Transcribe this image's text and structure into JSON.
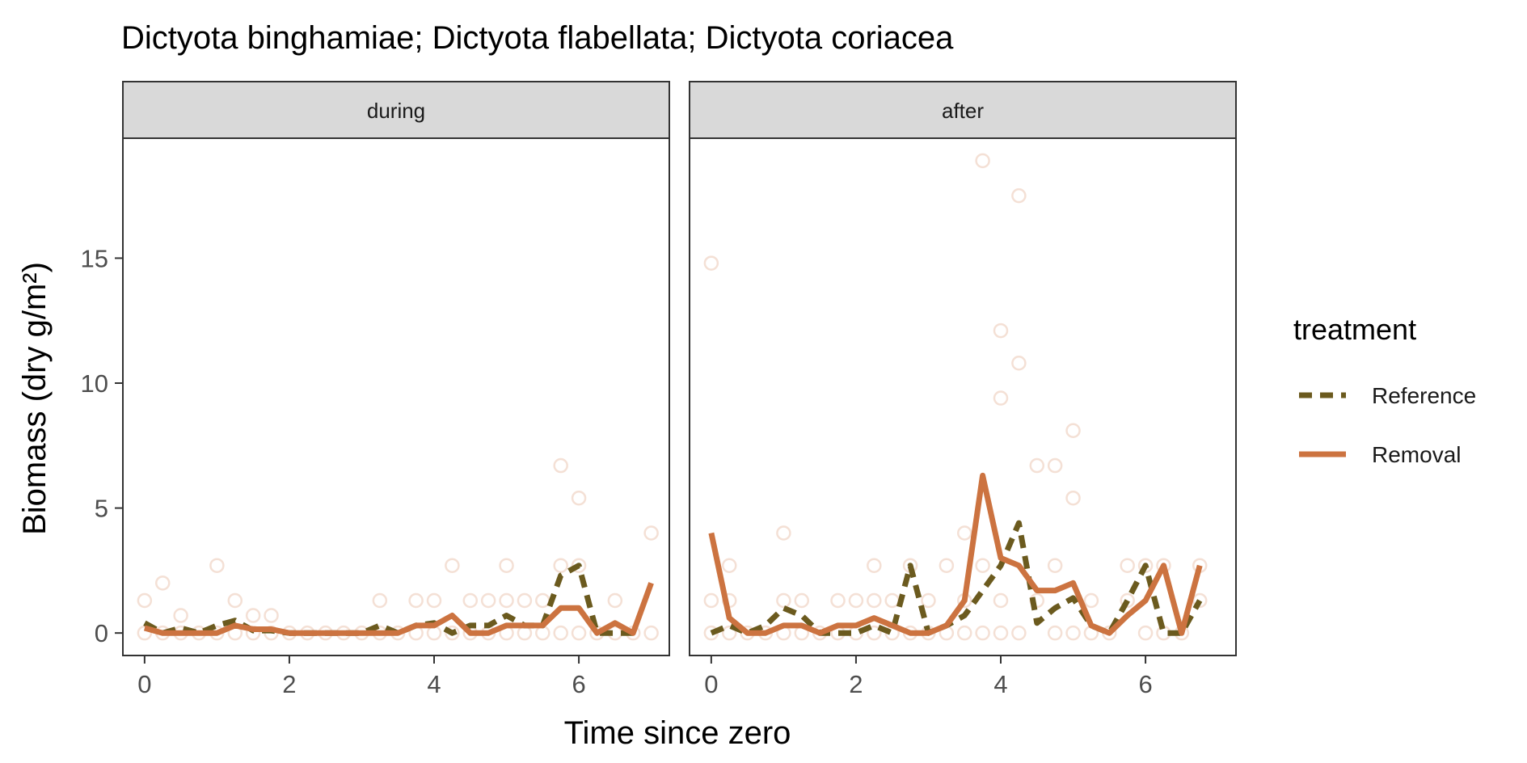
{
  "chart_data": {
    "type": "line",
    "title": "Dictyota binghamiae; Dictyota flabellata; Dictyota coriacea",
    "xlabel": "Time since zero",
    "ylabel": "Biomass (dry g/m²)",
    "xlim": [
      -0.3,
      7.25
    ],
    "ylim": [
      -0.9,
      19.8
    ],
    "x_ticks": [
      0,
      2,
      4,
      6
    ],
    "y_ticks": [
      0,
      5,
      10,
      15
    ],
    "grid": false,
    "legend": {
      "title": "treatment",
      "position": "right",
      "entries": [
        {
          "name": "Reference",
          "color": "#6b5a1e",
          "style": "dashed"
        },
        {
          "name": "Removal",
          "color": "#cc7340",
          "style": "solid"
        }
      ]
    },
    "point_color": "#cc7340",
    "panels": [
      {
        "label": "during",
        "series": [
          {
            "name": "Reference",
            "x": [
              0,
              0.25,
              0.5,
              0.75,
              1.0,
              1.25,
              1.5,
              1.75,
              2.0,
              2.25,
              2.5,
              2.75,
              3.0,
              3.25,
              3.5,
              3.75,
              4.0,
              4.25,
              4.5,
              4.75,
              5.0,
              5.25,
              5.5,
              5.75,
              6.0,
              6.25,
              6.5,
              6.75
            ],
            "y": [
              0.4,
              0,
              0.2,
              0,
              0.3,
              0.5,
              0.1,
              0.1,
              0,
              0,
              0,
              0,
              0,
              0.3,
              0,
              0.3,
              0.4,
              0,
              0.3,
              0.3,
              0.7,
              0.3,
              0.3,
              2.3,
              2.7,
              0,
              0,
              0
            ]
          },
          {
            "name": "Removal",
            "x": [
              0,
              0.25,
              0.5,
              0.75,
              1.0,
              1.25,
              1.5,
              1.75,
              2.0,
              2.25,
              2.5,
              2.75,
              3.0,
              3.25,
              3.5,
              3.75,
              4.0,
              4.25,
              4.5,
              4.75,
              5.0,
              5.25,
              5.5,
              5.75,
              6.0,
              6.25,
              6.5,
              6.75,
              7.0
            ],
            "y": [
              0.2,
              0,
              0,
              0,
              0,
              0.3,
              0.15,
              0.15,
              0,
              0,
              0,
              0,
              0,
              0,
              0,
              0.3,
              0.3,
              0.7,
              0,
              0,
              0.3,
              0.3,
              0.3,
              1.0,
              1.0,
              0,
              0.4,
              0,
              2.0
            ]
          }
        ],
        "points": {
          "x": [
            0,
            0,
            0.25,
            0.25,
            0.5,
            0.5,
            0.75,
            1.0,
            1.0,
            1.25,
            1.25,
            1.5,
            1.5,
            1.75,
            1.75,
            2.0,
            2.25,
            2.5,
            2.75,
            3.0,
            3.25,
            3.25,
            3.5,
            3.75,
            3.75,
            4.0,
            4.0,
            4.25,
            4.25,
            4.5,
            4.5,
            4.75,
            4.75,
            5.0,
            5.0,
            5.0,
            5.25,
            5.25,
            5.5,
            5.5,
            5.75,
            5.75,
            5.75,
            6.0,
            6.0,
            6.0,
            6.25,
            6.5,
            6.5,
            6.75,
            7.0,
            7.0
          ],
          "y": [
            0,
            1.3,
            0,
            2.0,
            0,
            0.7,
            0,
            0,
            2.7,
            0,
            1.3,
            0,
            0.7,
            0,
            0.7,
            0,
            0,
            0,
            0,
            0,
            0,
            1.3,
            0,
            0,
            1.3,
            0,
            1.3,
            0,
            2.7,
            0,
            1.3,
            0,
            1.3,
            0,
            1.3,
            2.7,
            0,
            1.3,
            0,
            1.3,
            0,
            2.7,
            6.7,
            0,
            2.7,
            5.4,
            0,
            0,
            1.3,
            0,
            0,
            4.0
          ]
        }
      },
      {
        "label": "after",
        "series": [
          {
            "name": "Reference",
            "x": [
              0,
              0.25,
              0.5,
              0.75,
              1.0,
              1.25,
              1.5,
              1.75,
              2.0,
              2.25,
              2.5,
              2.75,
              3.0,
              3.25,
              3.5,
              3.75,
              4.0,
              4.25,
              4.5,
              4.75,
              5.0,
              5.25,
              5.5,
              5.75,
              6.0,
              6.25,
              6.5,
              6.75
            ],
            "y": [
              0,
              0.3,
              0,
              0.3,
              1.0,
              0.7,
              0,
              0,
              0,
              0.3,
              0,
              2.7,
              0,
              0.3,
              0.7,
              1.7,
              2.7,
              4.4,
              0.4,
              1.0,
              1.4,
              0.3,
              0,
              1.3,
              2.7,
              0,
              0,
              1.3
            ]
          },
          {
            "name": "Removal",
            "x": [
              0,
              0.25,
              0.5,
              0.75,
              1.0,
              1.25,
              1.5,
              1.75,
              2.0,
              2.25,
              2.5,
              2.75,
              3.0,
              3.25,
              3.5,
              3.75,
              4.0,
              4.25,
              4.5,
              4.75,
              5.0,
              5.25,
              5.5,
              5.75,
              6.0,
              6.25,
              6.5,
              6.75
            ],
            "y": [
              4.0,
              0.6,
              0,
              0,
              0.3,
              0.3,
              0,
              0.3,
              0.3,
              0.6,
              0.3,
              0,
              0,
              0.3,
              1.3,
              6.3,
              3.0,
              2.7,
              1.7,
              1.7,
              2.0,
              0.3,
              0,
              0.7,
              1.3,
              2.7,
              0,
              2.7
            ]
          }
        ],
        "points": {
          "x": [
            0,
            0,
            0,
            0.25,
            0.25,
            0.25,
            0.5,
            0.75,
            1.0,
            1.0,
            1.0,
            1.25,
            1.25,
            1.5,
            1.75,
            1.75,
            2.0,
            2.0,
            2.25,
            2.25,
            2.25,
            2.5,
            2.5,
            2.75,
            2.75,
            3.0,
            3.0,
            3.25,
            3.25,
            3.5,
            3.5,
            3.5,
            3.75,
            3.75,
            3.75,
            4.0,
            4.0,
            4.0,
            4.0,
            4.25,
            4.25,
            4.25,
            4.5,
            4.5,
            4.75,
            4.75,
            4.75,
            5.0,
            5.0,
            5.0,
            5.25,
            5.25,
            5.5,
            5.75,
            5.75,
            6.0,
            6.0,
            6.25,
            6.25,
            6.5,
            6.75,
            6.75
          ],
          "y": [
            0,
            1.3,
            14.8,
            0,
            1.3,
            2.7,
            0,
            0,
            0,
            1.3,
            4.0,
            0,
            1.3,
            0,
            0,
            1.3,
            0,
            1.3,
            0,
            1.3,
            2.7,
            0,
            1.3,
            0,
            2.7,
            0,
            1.3,
            0,
            2.7,
            0,
            1.3,
            4.0,
            0,
            2.7,
            18.9,
            0,
            1.3,
            9.4,
            12.1,
            0,
            10.8,
            17.5,
            1.3,
            6.7,
            0,
            2.7,
            6.7,
            0,
            5.4,
            8.1,
            0,
            1.3,
            0,
            1.3,
            2.7,
            0,
            2.7,
            0,
            2.7,
            0,
            1.3,
            2.7
          ]
        }
      }
    ]
  }
}
